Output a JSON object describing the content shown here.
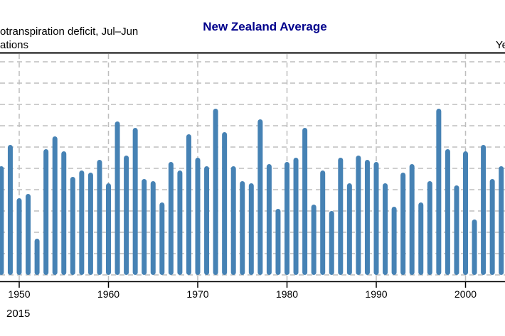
{
  "header": {
    "title": "New Zealand Average",
    "subtitle_line1": "otranspiration deficit, Jul–Jun",
    "subtitle_line2": "ations",
    "right_label": "Ye"
  },
  "footer": {
    "text": "2015"
  },
  "colors": {
    "bar": "#4682B4",
    "title": "#00008B",
    "grid": "#BEBEBE"
  },
  "chart_data": {
    "type": "bar",
    "title": "New Zealand Average",
    "xlabel": "",
    "ylabel": "",
    "y_units_note": "relative (gridline units; y-axis labels not visible)",
    "ylim": [
      0,
      10
    ],
    "xlim": [
      1948,
      2004
    ],
    "x_ticks": [
      1950,
      1960,
      1970,
      1980,
      1990,
      2000
    ],
    "x_tick_labels": [
      "1950",
      "1960",
      "1970",
      "1980",
      "1990",
      "2000"
    ],
    "grid": true,
    "x": [
      1948,
      1949,
      1950,
      1951,
      1952,
      1953,
      1954,
      1955,
      1956,
      1957,
      1958,
      1959,
      1960,
      1961,
      1962,
      1963,
      1964,
      1965,
      1966,
      1967,
      1968,
      1969,
      1970,
      1971,
      1972,
      1973,
      1974,
      1975,
      1976,
      1977,
      1978,
      1979,
      1980,
      1981,
      1982,
      1983,
      1984,
      1985,
      1986,
      1987,
      1988,
      1989,
      1990,
      1991,
      1992,
      1993,
      1994,
      1995,
      1996,
      1997,
      1998,
      1999,
      2000,
      2001,
      2002,
      2003,
      2004
    ],
    "values": [
      5.1,
      6.1,
      3.6,
      3.8,
      1.7,
      5.9,
      6.5,
      5.8,
      4.6,
      4.9,
      4.8,
      5.4,
      4.3,
      7.2,
      5.6,
      6.9,
      4.5,
      4.4,
      3.4,
      5.3,
      4.9,
      6.6,
      5.5,
      5.1,
      7.8,
      6.7,
      5.1,
      4.4,
      4.3,
      7.3,
      5.2,
      3.1,
      5.3,
      5.5,
      6.9,
      3.3,
      4.9,
      3.0,
      5.5,
      4.3,
      5.6,
      5.4,
      5.3,
      4.3,
      3.2,
      4.8,
      5.2,
      3.4,
      4.4,
      7.8,
      5.9,
      4.2,
      5.8,
      2.6,
      6.1,
      4.5,
      5.1
    ]
  }
}
